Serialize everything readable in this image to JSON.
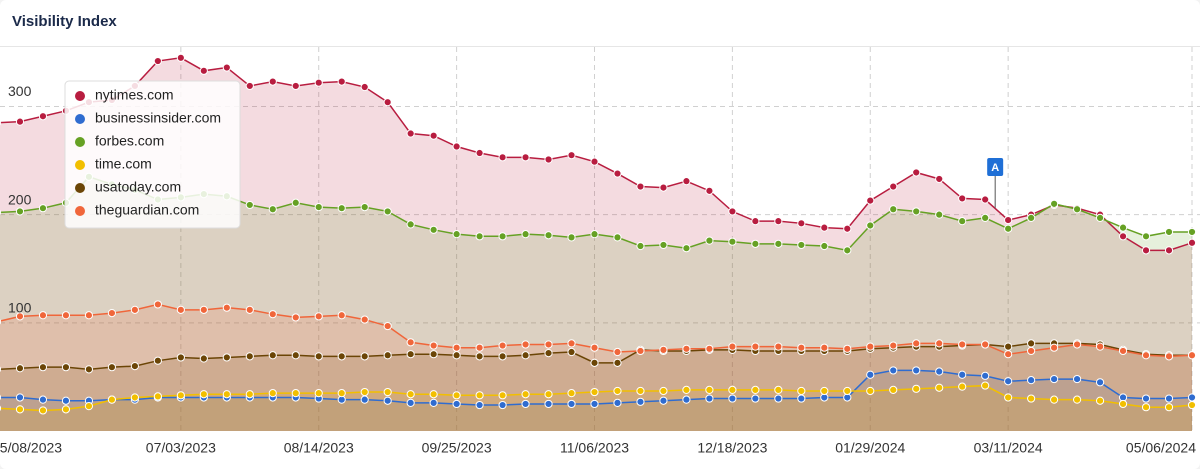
{
  "chart_data": {
    "type": "line",
    "title": "Visibility Index",
    "x": [
      "05/08/2023",
      "05/15/2023",
      "05/22/2023",
      "05/29/2023",
      "06/05/2023",
      "06/12/2023",
      "06/19/2023",
      "06/26/2023",
      "07/03/2023",
      "07/10/2023",
      "07/17/2023",
      "07/24/2023",
      "07/31/2023",
      "08/07/2023",
      "08/14/2023",
      "08/21/2023",
      "08/28/2023",
      "09/04/2023",
      "09/11/2023",
      "09/18/2023",
      "09/25/2023",
      "10/02/2023",
      "10/09/2023",
      "10/16/2023",
      "10/23/2023",
      "10/30/2023",
      "11/06/2023",
      "11/13/2023",
      "11/20/2023",
      "11/27/2023",
      "12/04/2023",
      "12/11/2023",
      "12/18/2023",
      "12/25/2023",
      "01/01/2024",
      "01/08/2024",
      "01/15/2024",
      "01/22/2024",
      "01/29/2024",
      "02/05/2024",
      "02/12/2024",
      "02/19/2024",
      "02/26/2024",
      "03/04/2024",
      "03/11/2024",
      "03/18/2024",
      "03/25/2024",
      "04/01/2024",
      "04/08/2024",
      "04/15/2024",
      "04/22/2024",
      "04/29/2024",
      "05/06/2024"
    ],
    "series": [
      {
        "name": "nytimes.com",
        "color": "#b81d40",
        "values": [
          285,
          286,
          291,
          296,
          304,
          306,
          319,
          342,
          345,
          333,
          336,
          319,
          323,
          319,
          322,
          323,
          318,
          304,
          275,
          273,
          263,
          257,
          253,
          253,
          251,
          255,
          249,
          238,
          226,
          225,
          231,
          222,
          203,
          194,
          194,
          192,
          188,
          187,
          213,
          226,
          239,
          233,
          215,
          214,
          195,
          200,
          209,
          206,
          200,
          180,
          167,
          167,
          174
        ]
      },
      {
        "name": "businessinsider.com",
        "color": "#2f6cd0",
        "values": [
          31,
          31,
          29,
          28,
          28,
          29,
          29,
          31,
          31,
          31,
          31,
          31,
          31,
          31,
          30,
          29,
          29,
          28,
          26,
          26,
          25,
          24,
          24,
          25,
          25,
          25,
          25,
          26,
          27,
          28,
          29,
          30,
          30,
          30,
          30,
          30,
          31,
          31,
          52,
          56,
          56,
          55,
          52,
          51,
          46,
          47,
          48,
          48,
          45,
          31,
          30,
          30,
          31
        ]
      },
      {
        "name": "forbes.com",
        "color": "#66a124",
        "values": [
          202,
          203,
          206,
          211,
          235,
          228,
          223,
          214,
          216,
          219,
          217,
          209,
          205,
          211,
          207,
          206,
          207,
          203,
          191,
          186,
          182,
          180,
          180,
          182,
          181,
          179,
          182,
          179,
          171,
          172,
          169,
          176,
          175,
          173,
          173,
          172,
          171,
          167,
          190,
          205,
          203,
          200,
          194,
          197,
          187,
          197,
          210,
          205,
          197,
          188,
          180,
          184,
          184
        ]
      },
      {
        "name": "time.com",
        "color": "#f2bf00",
        "values": [
          21,
          20,
          19,
          20,
          23,
          29,
          31,
          32,
          33,
          34,
          34,
          34,
          35,
          35,
          35,
          35,
          36,
          36,
          34,
          34,
          33,
          33,
          33,
          34,
          34,
          35,
          36,
          37,
          37,
          37,
          38,
          38,
          38,
          38,
          38,
          37,
          37,
          37,
          37,
          38,
          39,
          40,
          41,
          42,
          31,
          30,
          29,
          29,
          28,
          25,
          22,
          22,
          24
        ]
      },
      {
        "name": "usatoday.com",
        "color": "#6b4506",
        "values": [
          57,
          58,
          59,
          59,
          57,
          59,
          60,
          65,
          68,
          67,
          68,
          69,
          70,
          70,
          69,
          69,
          69,
          70,
          71,
          71,
          70,
          69,
          69,
          70,
          72,
          73,
          63,
          63,
          75,
          74,
          74,
          75,
          75,
          74,
          74,
          74,
          74,
          74,
          76,
          77,
          78,
          78,
          79,
          80,
          78,
          81,
          81,
          81,
          80,
          75,
          71,
          70,
          70
        ]
      },
      {
        "name": "theguardian.com",
        "color": "#f0663a",
        "values": [
          101,
          106,
          107,
          107,
          107,
          109,
          112,
          117,
          112,
          112,
          114,
          112,
          108,
          105,
          106,
          107,
          103,
          97,
          82,
          79,
          77,
          77,
          79,
          80,
          80,
          81,
          77,
          73,
          74,
          75,
          76,
          76,
          78,
          78,
          78,
          77,
          77,
          76,
          78,
          79,
          81,
          81,
          80,
          80,
          71,
          74,
          77,
          80,
          78,
          74,
          70,
          69,
          70
        ]
      }
    ],
    "ylim": [
      0,
      355
    ],
    "yticks": [
      100,
      200,
      300
    ],
    "xticks": [
      "05/08/2023",
      "07/03/2023",
      "08/14/2023",
      "09/25/2023",
      "11/06/2023",
      "12/18/2023",
      "01/29/2024",
      "03/11/2024",
      "05/06/2024"
    ],
    "grid": true,
    "annotations": [
      {
        "label": "A",
        "x": "03/04/2024"
      }
    ]
  }
}
